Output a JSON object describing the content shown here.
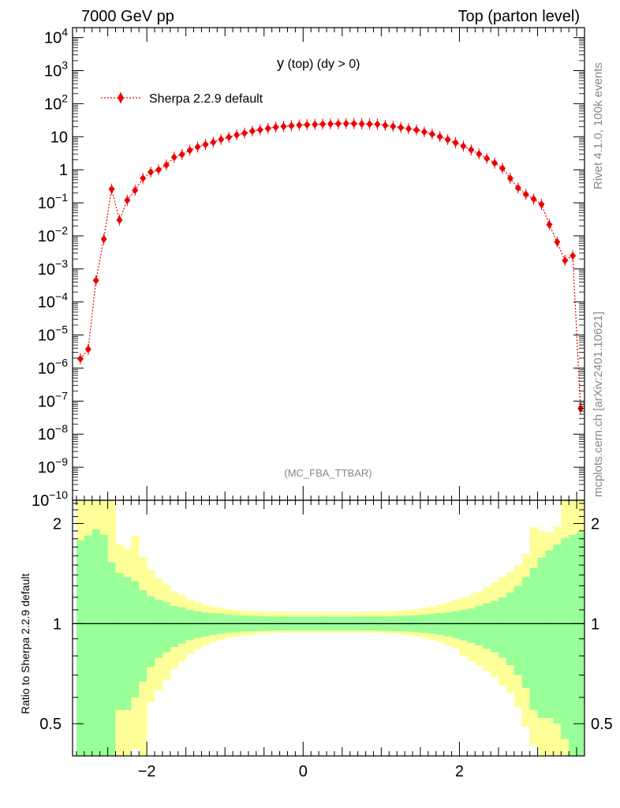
{
  "header": {
    "left": "7000 GeV pp",
    "right": "Top (parton level)"
  },
  "side_labels": {
    "rivet": "Rivet 4.1.0,  100k events",
    "mcplots": "mcplots.cern.ch [arXiv:2401.10621]"
  },
  "plot_title": {
    "main": "y",
    "sub": " (top) (dy > 0)"
  },
  "analysis_tag": "(MC_FBA_TTBAR)",
  "colors": {
    "series": "#ee0000",
    "band_outer": "#ffff99",
    "band_inner": "#99ff99",
    "axis": "#000000",
    "gray_text": "#888888"
  },
  "chart_data": [
    {
      "type": "scatter",
      "yscale": "log",
      "xlim": [
        -2.95,
        3.6
      ],
      "ylim": [
        1e-10,
        20000
      ],
      "legend": {
        "position": "top-left",
        "entries": [
          "Sherpa 2.2.9 default"
        ]
      },
      "y_ticks": [
        {
          "v": 10000.0,
          "b": "10",
          "e": "4"
        },
        {
          "v": 1000.0,
          "b": "10",
          "e": "3"
        },
        {
          "v": 100.0,
          "b": "10",
          "e": "2"
        },
        {
          "v": 10,
          "b": "10",
          "e": ""
        },
        {
          "v": 1,
          "b": "1",
          "e": ""
        },
        {
          "v": 0.1,
          "b": "10",
          "e": "−1"
        },
        {
          "v": 0.01,
          "b": "10",
          "e": "−2"
        },
        {
          "v": 0.001,
          "b": "10",
          "e": "−3"
        },
        {
          "v": 0.0001,
          "b": "10",
          "e": "−4"
        },
        {
          "v": 1e-05,
          "b": "10",
          "e": "−5"
        },
        {
          "v": 1e-06,
          "b": "10",
          "e": "−6"
        },
        {
          "v": 1e-07,
          "b": "10",
          "e": "−7"
        },
        {
          "v": 1e-08,
          "b": "10",
          "e": "−8"
        },
        {
          "v": 1e-09,
          "b": "10",
          "e": "−9"
        },
        {
          "v": 1e-10,
          "b": "10",
          "e": "−10"
        }
      ],
      "series": [
        {
          "name": "Sherpa 2.2.9 default",
          "x": [
            -2.85,
            -2.75,
            -2.65,
            -2.55,
            -2.45,
            -2.35,
            -2.25,
            -2.15,
            -2.05,
            -1.95,
            -1.85,
            -1.75,
            -1.65,
            -1.55,
            -1.45,
            -1.35,
            -1.25,
            -1.15,
            -1.05,
            -0.95,
            -0.85,
            -0.75,
            -0.65,
            -0.55,
            -0.45,
            -0.35,
            -0.25,
            -0.15,
            -0.05,
            0.05,
            0.15,
            0.25,
            0.35,
            0.45,
            0.55,
            0.65,
            0.75,
            0.85,
            0.95,
            1.05,
            1.15,
            1.25,
            1.35,
            1.45,
            1.55,
            1.65,
            1.75,
            1.85,
            1.95,
            2.05,
            2.15,
            2.25,
            2.35,
            2.45,
            2.55,
            2.65,
            2.75,
            2.85,
            2.95,
            3.05,
            3.15,
            3.25,
            3.35,
            3.45,
            3.55
          ],
          "y": [
            1.9e-06,
            3.7e-06,
            0.00045,
            0.008,
            0.26,
            0.03,
            0.12,
            0.24,
            0.55,
            0.85,
            1.0,
            1.4,
            2.4,
            2.9,
            3.9,
            4.9,
            5.8,
            6.8,
            8.3,
            9.7,
            11.3,
            12.8,
            14.8,
            16.2,
            17.8,
            19.5,
            20.5,
            21.5,
            22.5,
            23,
            23.5,
            24,
            24.5,
            24.8,
            25,
            24.8,
            24.5,
            24.2,
            23.8,
            22,
            20.5,
            19,
            17.5,
            16,
            14,
            12,
            10,
            8.2,
            6.6,
            5.2,
            4.0,
            3.0,
            2.2,
            1.6,
            1.1,
            0.55,
            0.28,
            0.18,
            0.13,
            0.09,
            0.022,
            0.0065,
            0.0018,
            0.0025,
            6e-08
          ]
        }
      ]
    },
    {
      "type": "area",
      "ylabel": "Ratio to Sherpa 2.2.9 default",
      "yscale": "log",
      "xlim": [
        -2.95,
        3.6
      ],
      "ylim": [
        0.4,
        2.35
      ],
      "x_ticks": [
        -2,
        0,
        2
      ],
      "x_tick_labels": [
        "−2",
        "0",
        "2"
      ],
      "y_ticks": [
        0.5,
        1,
        2
      ],
      "y_tick_labels": [
        "0.5",
        "1",
        "2"
      ],
      "bins": {
        "edges_start": -2.9,
        "width": 0.1,
        "inner_up": [
          1.78,
          1.84,
          1.92,
          1.85,
          1.53,
          1.42,
          1.38,
          1.34,
          1.26,
          1.21,
          1.18,
          1.16,
          1.13,
          1.12,
          1.1,
          1.09,
          1.08,
          1.075,
          1.07,
          1.065,
          1.06,
          1.058,
          1.056,
          1.054,
          1.052,
          1.05,
          1.05,
          1.05,
          1.05,
          1.05,
          1.05,
          1.05,
          1.05,
          1.05,
          1.05,
          1.05,
          1.05,
          1.05,
          1.05,
          1.052,
          1.054,
          1.056,
          1.058,
          1.06,
          1.065,
          1.07,
          1.075,
          1.08,
          1.09,
          1.1,
          1.11,
          1.13,
          1.15,
          1.17,
          1.2,
          1.24,
          1.3,
          1.38,
          1.47,
          1.58,
          1.66,
          1.73,
          1.81,
          1.85,
          1.88
        ],
        "outer_up": [
          2.6,
          2.6,
          2.6,
          2.6,
          2.6,
          1.73,
          1.68,
          1.84,
          1.58,
          1.45,
          1.37,
          1.31,
          1.25,
          1.22,
          1.18,
          1.16,
          1.14,
          1.125,
          1.115,
          1.105,
          1.1,
          1.095,
          1.09,
          1.087,
          1.085,
          1.083,
          1.082,
          1.08,
          1.08,
          1.08,
          1.08,
          1.08,
          1.08,
          1.08,
          1.08,
          1.08,
          1.08,
          1.082,
          1.085,
          1.087,
          1.09,
          1.095,
          1.1,
          1.105,
          1.115,
          1.125,
          1.14,
          1.16,
          1.18,
          1.2,
          1.22,
          1.25,
          1.29,
          1.33,
          1.38,
          1.43,
          1.5,
          1.62,
          1.95,
          1.9,
          1.88,
          1.96,
          2.35,
          2.6,
          2.6
        ],
        "inner_dn": [
          0.3,
          0.3,
          0.3,
          0.3,
          0.3,
          0.55,
          0.55,
          0.6,
          0.67,
          0.74,
          0.79,
          0.82,
          0.85,
          0.87,
          0.89,
          0.905,
          0.915,
          0.925,
          0.932,
          0.938,
          0.942,
          0.946,
          0.948,
          0.95,
          0.952,
          0.953,
          0.954,
          0.955,
          0.955,
          0.955,
          0.955,
          0.955,
          0.955,
          0.955,
          0.955,
          0.955,
          0.955,
          0.954,
          0.953,
          0.952,
          0.95,
          0.948,
          0.946,
          0.942,
          0.938,
          0.932,
          0.925,
          0.915,
          0.905,
          0.89,
          0.875,
          0.86,
          0.84,
          0.82,
          0.79,
          0.75,
          0.7,
          0.64,
          0.55,
          0.52,
          0.52,
          0.5,
          0.45,
          0.3,
          0.3
        ],
        "outer_dn": [
          0.3,
          0.3,
          0.3,
          0.3,
          0.3,
          0.3,
          0.35,
          0.42,
          0.38,
          0.58,
          0.63,
          0.68,
          0.73,
          0.77,
          0.81,
          0.84,
          0.86,
          0.88,
          0.895,
          0.907,
          0.915,
          0.922,
          0.927,
          0.932,
          0.935,
          0.937,
          0.938,
          0.94,
          0.94,
          0.94,
          0.94,
          0.94,
          0.94,
          0.94,
          0.94,
          0.94,
          0.94,
          0.938,
          0.937,
          0.935,
          0.932,
          0.927,
          0.922,
          0.915,
          0.905,
          0.893,
          0.88,
          0.86,
          0.84,
          0.8,
          0.77,
          0.75,
          0.72,
          0.69,
          0.65,
          0.62,
          0.56,
          0.49,
          0.43,
          0.4,
          0.4,
          0.38,
          0.3,
          0.3,
          0.3
        ]
      }
    }
  ]
}
